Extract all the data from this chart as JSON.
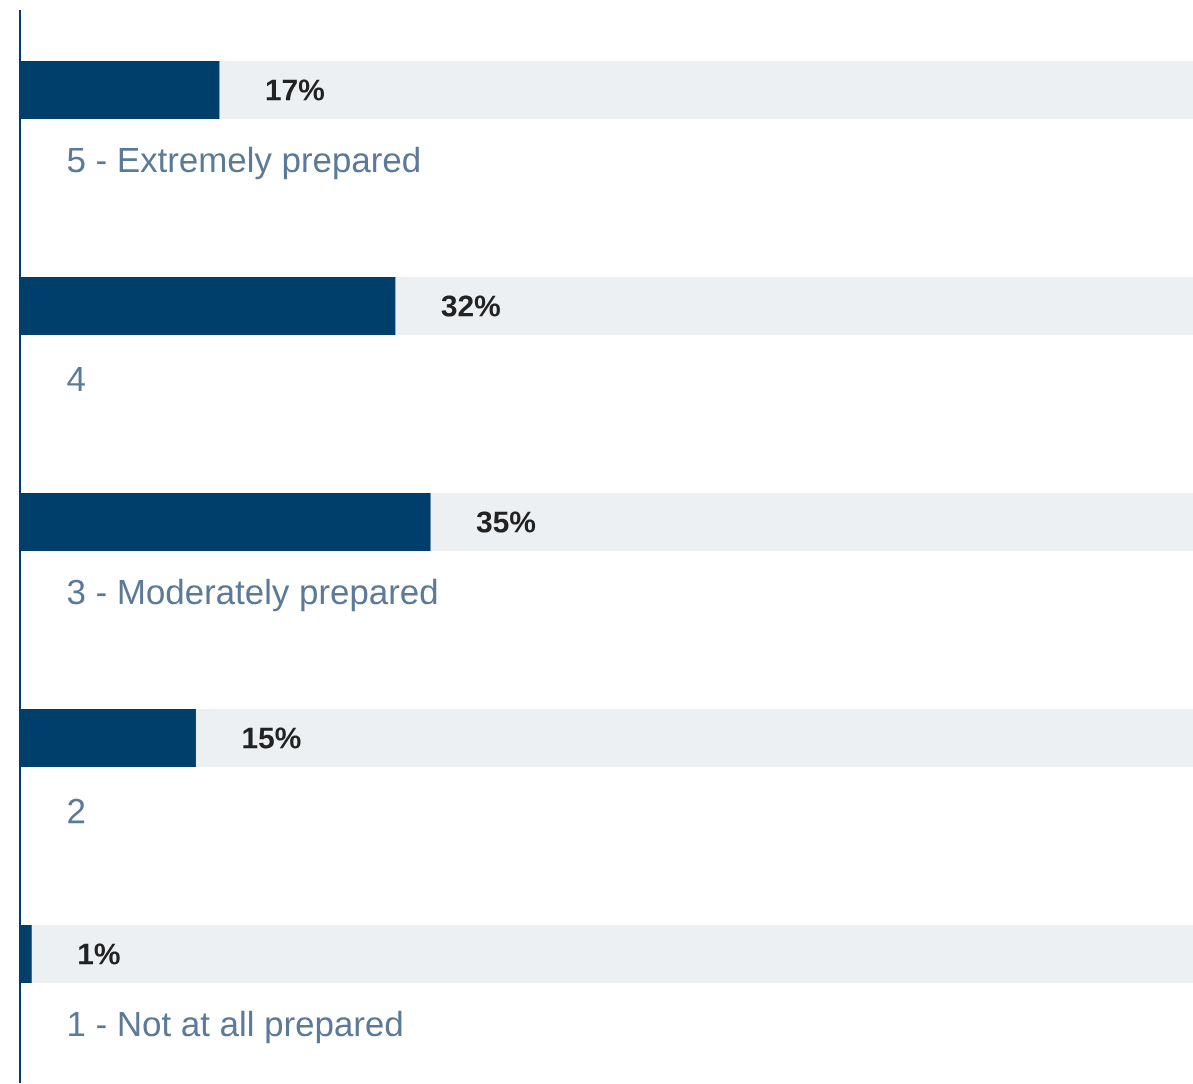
{
  "chart_data": {
    "type": "bar",
    "orientation": "horizontal",
    "categories": [
      "5 - Extremely prepared",
      "4",
      "3 - Moderately prepared",
      "2",
      "1 - Not at all prepared"
    ],
    "series": [
      {
        "color": "#003f6b",
        "values": [
          17,
          32,
          35,
          15,
          1
        ],
        "value_labels": [
          "17%",
          "32%",
          "35%",
          "15%",
          "1%"
        ]
      }
    ],
    "xlim": [
      0,
      100
    ]
  }
}
